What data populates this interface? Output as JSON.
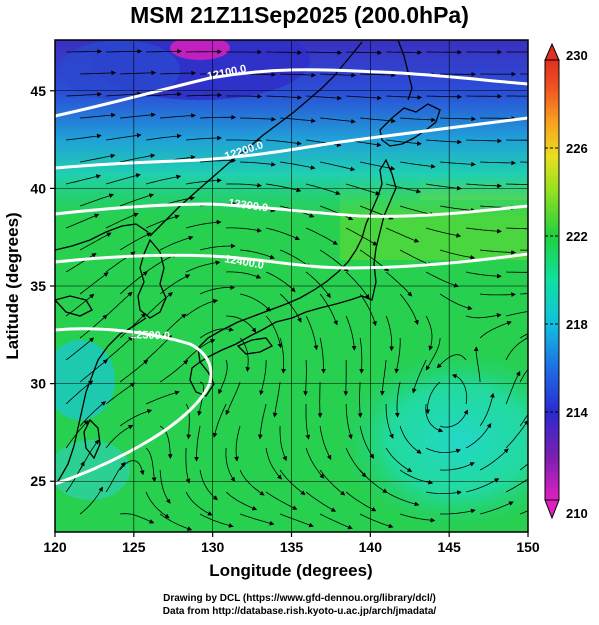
{
  "title": "MSM 21Z11Sep2025 (200.0hPa)",
  "xaxis": {
    "label": "Longitude (degrees)",
    "ticks": [
      120,
      125,
      130,
      135,
      140,
      145,
      150
    ],
    "range": [
      120,
      150
    ]
  },
  "yaxis": {
    "label": "Latitude  (degrees)",
    "ticks": [
      25,
      30,
      35,
      40,
      45
    ],
    "range": [
      22.4,
      47.6
    ]
  },
  "colorbar": {
    "ticks": [
      210,
      214,
      218,
      222,
      226,
      230
    ],
    "range": [
      210,
      230
    ]
  },
  "contours": [
    {
      "label": "12100.0"
    },
    {
      "label": "12200.0"
    },
    {
      "label": "12300.0"
    },
    {
      "label": "12400.0"
    },
    {
      "label": "12500.0"
    }
  ],
  "credits": {
    "line1": "Drawing by DCL (https://www.gfd-dennou.org/library/dcl/)",
    "line2": "Data from http://database.rish.kyoto-u.ac.jp/arch/jmadata/"
  }
}
